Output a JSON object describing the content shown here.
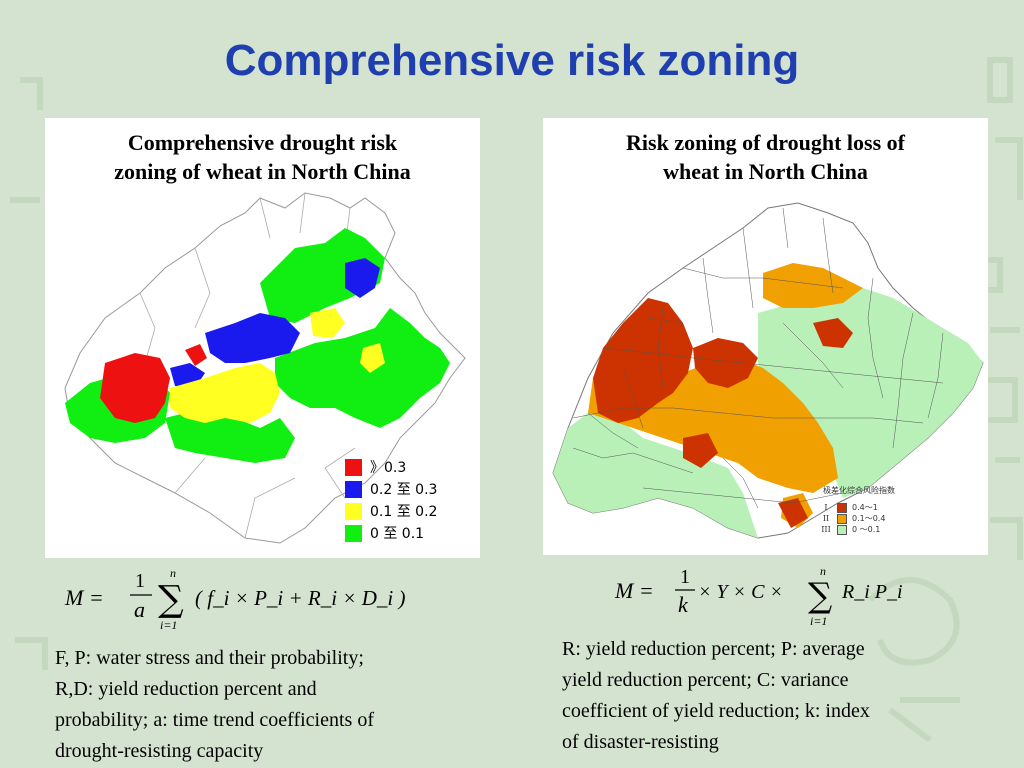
{
  "slide": {
    "title": "Comprehensive risk zoning"
  },
  "left_panel": {
    "title_line1": "Comprehensive drought risk",
    "title_line2": "zoning of wheat in North China",
    "legend": [
      {
        "label": "》0.3",
        "color": "#ee1111"
      },
      {
        "label": "0.2 至 0.3",
        "color": "#1a1aee"
      },
      {
        "label": "0.1 至 0.2",
        "color": "#ffff22"
      },
      {
        "label": "0   至 0.1",
        "color": "#11ee11"
      }
    ],
    "formula": {
      "lhs": "M =",
      "frac_num": "1",
      "frac_den": "a",
      "sum_top": "n",
      "sum_bottom": "i=1",
      "body": "( f_i × P_i + R_i × D_i )"
    },
    "description": [
      "F, P: water stress and their probability;",
      "R,D: yield reduction percent and",
      "probability; a: time trend coefficients of",
      "drought-resisting capacity"
    ]
  },
  "right_panel": {
    "title_line1": "Risk zoning of drought loss of",
    "title_line2": "wheat in North China",
    "legend_title": "极差化综合风险指数",
    "legend": [
      {
        "class": "I",
        "range": "0.4～1",
        "color": "#cc3300"
      },
      {
        "class": "II",
        "range": "0.1～0.4",
        "color": "#f0a000"
      },
      {
        "class": "III",
        "range": "0 ～0.1",
        "color": "#b8f0b8"
      }
    ],
    "formula": {
      "lhs": "M =",
      "frac_num": "1",
      "frac_den": "k",
      "mid": "× Y × C ×",
      "sum_top": "n",
      "sum_bottom": "i=1",
      "body": "R_i P_i"
    },
    "description": [
      "R: yield reduction percent; P: average",
      "yield reduction percent; C: variance",
      "coefficient of yield reduction; k:  index",
      "of disaster-resisting"
    ]
  },
  "colors": {
    "title": "#1f3fb0",
    "background": "#d4e3cf"
  }
}
